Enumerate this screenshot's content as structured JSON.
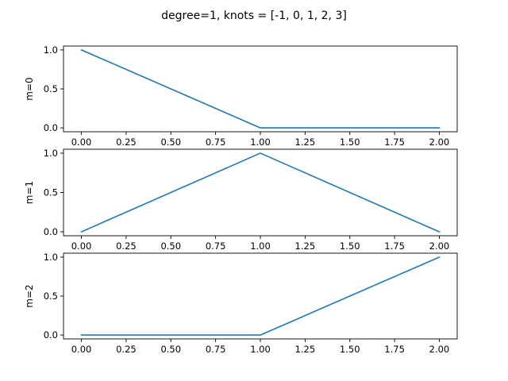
{
  "figure": {
    "title": "degree=1, knots = [-1, 0, 1, 2, 3]"
  },
  "style": {
    "line_color": "#1f77b4",
    "axis_color": "#000000",
    "background": "#ffffff"
  },
  "chart_data": [
    {
      "type": "line",
      "ylabel": "m=0",
      "xlim": [
        -0.1,
        2.1
      ],
      "ylim": [
        -0.05,
        1.05
      ],
      "xticks": [
        0,
        0.25,
        0.5,
        0.75,
        1,
        1.25,
        1.5,
        1.75,
        2
      ],
      "xtick_labels": [
        "0.00",
        "0.25",
        "0.50",
        "0.75",
        "1.00",
        "1.25",
        "1.50",
        "1.75",
        "2.00"
      ],
      "yticks": [
        0,
        0.5,
        1
      ],
      "ytick_labels": [
        "0.0",
        "0.5",
        "1.0"
      ],
      "grid": false,
      "x": [
        0,
        1,
        2
      ],
      "series": [
        {
          "values": [
            1,
            0,
            0
          ]
        }
      ]
    },
    {
      "type": "line",
      "ylabel": "m=1",
      "xlim": [
        -0.1,
        2.1
      ],
      "ylim": [
        -0.05,
        1.05
      ],
      "xticks": [
        0,
        0.25,
        0.5,
        0.75,
        1,
        1.25,
        1.5,
        1.75,
        2
      ],
      "xtick_labels": [
        "0.00",
        "0.25",
        "0.50",
        "0.75",
        "1.00",
        "1.25",
        "1.50",
        "1.75",
        "2.00"
      ],
      "yticks": [
        0,
        0.5,
        1
      ],
      "ytick_labels": [
        "0.0",
        "0.5",
        "1.0"
      ],
      "grid": false,
      "x": [
        0,
        1,
        2
      ],
      "series": [
        {
          "values": [
            0,
            1,
            0
          ]
        }
      ]
    },
    {
      "type": "line",
      "ylabel": "m=2",
      "xlim": [
        -0.1,
        2.1
      ],
      "ylim": [
        -0.05,
        1.05
      ],
      "xticks": [
        0,
        0.25,
        0.5,
        0.75,
        1,
        1.25,
        1.5,
        1.75,
        2
      ],
      "xtick_labels": [
        "0.00",
        "0.25",
        "0.50",
        "0.75",
        "1.00",
        "1.25",
        "1.50",
        "1.75",
        "2.00"
      ],
      "yticks": [
        0,
        0.5,
        1
      ],
      "ytick_labels": [
        "0.0",
        "0.5",
        "1.0"
      ],
      "grid": false,
      "x": [
        0,
        1,
        2
      ],
      "series": [
        {
          "values": [
            0,
            0,
            1
          ]
        }
      ]
    }
  ]
}
